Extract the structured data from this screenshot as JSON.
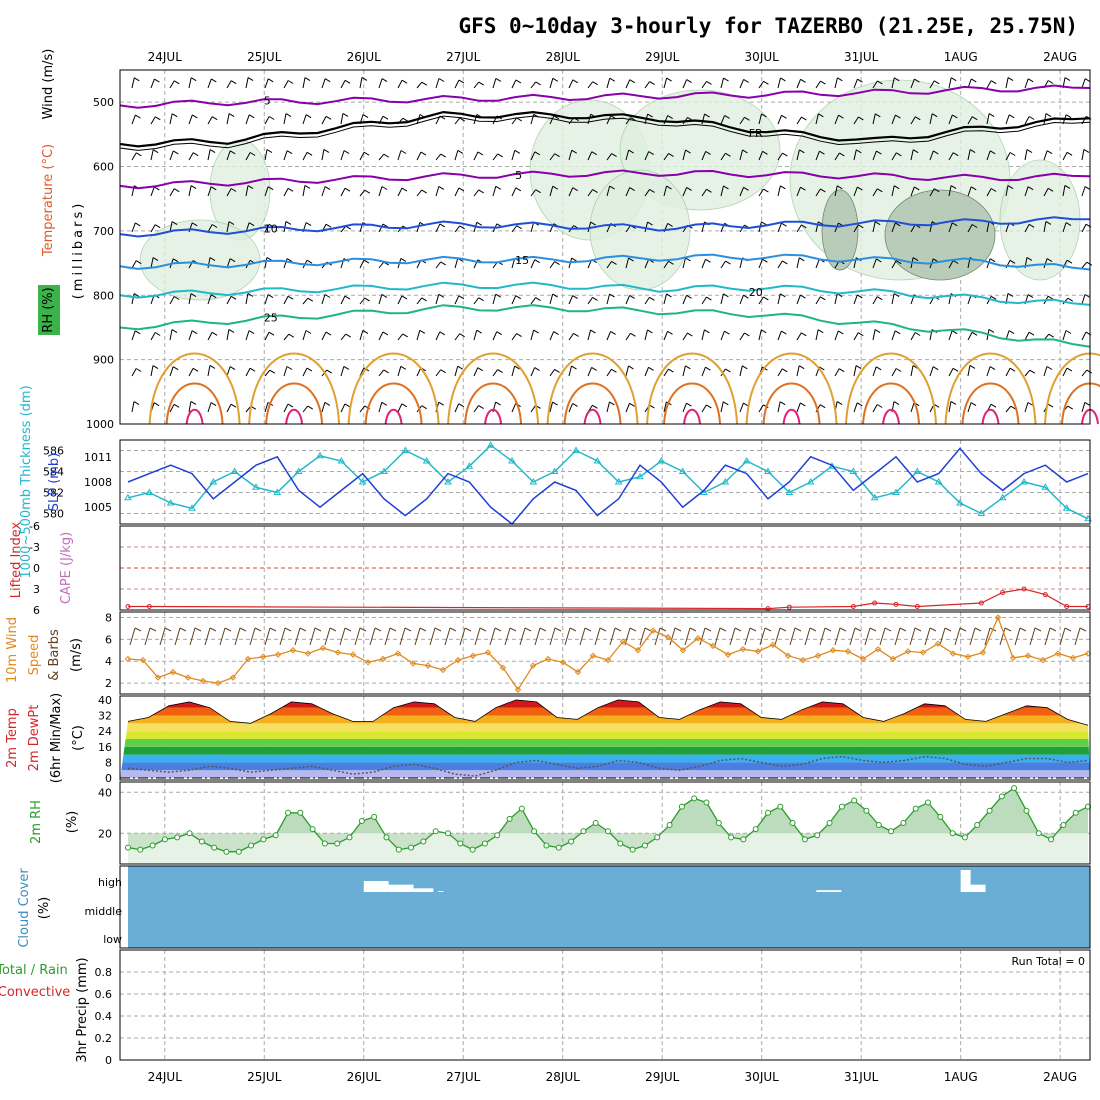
{
  "title": "GFS 0~10day 3-hourly for TAZERBO (21.25E, 25.75N)",
  "dates": [
    "24JUL",
    "25JUL",
    "26JUL",
    "27JUL",
    "28JUL",
    "29JUL",
    "30JUL",
    "31JUL",
    "1AUG",
    "2AUG"
  ],
  "colors": {
    "grid": "#aaaaaa",
    "panel_border": "#000000",
    "cloud_fill": "#6aaed6",
    "rh_fill": "#c6dfc6",
    "precip_line": "#d62728"
  },
  "chart_data": [
    {
      "type": "contour",
      "panel": "upper-air",
      "ylabel_parts": [
        "Wind (m/s)",
        "Temperature (°C)",
        "RH (%)",
        "(millibars)"
      ],
      "yticks": [
        500,
        600,
        700,
        800,
        900,
        1000
      ],
      "ylim": [
        450,
        1000
      ],
      "freezing_label": "FR",
      "isotherms": [
        {
          "value": 5,
          "label": "5",
          "color": "#8800aa",
          "levels": [
            505,
            500,
            498,
            495,
            493,
            490,
            488,
            485,
            480,
            478
          ]
        },
        {
          "value": 5,
          "label": "5",
          "color": "#8800aa",
          "levels": [
            630,
            625,
            620,
            615,
            612,
            610,
            612,
            615,
            618,
            615
          ]
        },
        {
          "value": 0,
          "label": "FR",
          "color": "#000000",
          "levels": [
            565,
            560,
            540,
            520,
            520,
            525,
            545,
            560,
            540,
            525
          ]
        },
        {
          "value": 10,
          "label": "10",
          "color": "#1f4fd6",
          "levels": [
            705,
            700,
            695,
            690,
            692,
            695,
            690,
            688,
            686,
            682
          ]
        },
        {
          "value": 15,
          "label": "15",
          "color": "#2a8fe0",
          "levels": [
            755,
            752,
            748,
            745,
            745,
            742,
            740,
            745,
            748,
            760
          ]
        },
        {
          "value": 20,
          "label": "20",
          "color": "#22b8c9",
          "levels": [
            800,
            795,
            790,
            785,
            785,
            790,
            788,
            795,
            805,
            815
          ]
        },
        {
          "value": 25,
          "label": "25",
          "color": "#1fb38a",
          "levels": [
            850,
            840,
            830,
            820,
            820,
            825,
            830,
            845,
            860,
            880
          ]
        }
      ]
    },
    {
      "type": "line",
      "panel": "thickness-slp",
      "ylabel_left": "1000~500mb Thickness (dm)",
      "ylabel_right": "SLP (mb)",
      "yticks_left": [
        580,
        582,
        584,
        586
      ],
      "yticks_right": [
        1005,
        1008,
        1011
      ],
      "ylim_left": [
        579,
        587
      ],
      "ylim_right": [
        1003,
        1013
      ],
      "series": [
        {
          "name": "Thickness",
          "axis": "left",
          "color": "#22b8c9",
          "marker": "triangle",
          "values": [
            581.5,
            582,
            581,
            580.5,
            583,
            584,
            582.5,
            582,
            584,
            585.5,
            585,
            583,
            584,
            586,
            585,
            583,
            584.5,
            586.5,
            585,
            583,
            584,
            586,
            585,
            583,
            583.5,
            585,
            584,
            582,
            583,
            585,
            584,
            582,
            583,
            584.5,
            584,
            581.5,
            582,
            584,
            583,
            581,
            580,
            581.5,
            583,
            582.5,
            580.5,
            579.5
          ]
        },
        {
          "name": "SLP",
          "axis": "right",
          "color": "#1f3fd6",
          "values": [
            1008,
            1009,
            1010,
            1009,
            1006,
            1008,
            1010,
            1011,
            1007,
            1005,
            1007,
            1009,
            1006,
            1004,
            1006,
            1009,
            1008,
            1005,
            1003,
            1006,
            1008,
            1007,
            1004,
            1006,
            1010,
            1008,
            1005,
            1007,
            1010,
            1009,
            1006,
            1008,
            1011,
            1010,
            1007,
            1009,
            1011,
            1008,
            1009,
            1012,
            1009,
            1007,
            1009,
            1010,
            1008,
            1009
          ]
        }
      ]
    },
    {
      "type": "line",
      "panel": "stability",
      "ylabel_parts": [
        "Lifted Index",
        "CAPE (J/kg)"
      ],
      "yticks": [
        -6,
        -3,
        0,
        3,
        6
      ],
      "ylim": [
        -6,
        6
      ],
      "series": [
        {
          "name": "Lifted Index",
          "color": "#d62728",
          "values": [
            5.5,
            5.5,
            6,
            6,
            6,
            6,
            6,
            6,
            6,
            6,
            6,
            6,
            6,
            6,
            6,
            6,
            6,
            6,
            6,
            6,
            6,
            6,
            6,
            6,
            6,
            6,
            6,
            6,
            6,
            6,
            5.8,
            5.6,
            6,
            6,
            5.5,
            5,
            5.2,
            5.5,
            6,
            6,
            5,
            3.5,
            3,
            3.8,
            5.5,
            5.5
          ]
        }
      ]
    },
    {
      "type": "line",
      "panel": "10m-wind",
      "ylabel_parts": [
        "10m Wind",
        "Speed",
        "& Barbs",
        "(m/s)"
      ],
      "yticks": [
        2,
        4,
        6,
        8
      ],
      "ylim": [
        1,
        8.5
      ],
      "series": [
        {
          "name": "10m Wind Speed",
          "color": "#e08a1e",
          "values": [
            4.2,
            4.1,
            2.5,
            3,
            2.5,
            2.2,
            2,
            2.5,
            4.2,
            4.4,
            4.6,
            5,
            4.7,
            5.2,
            4.8,
            4.6,
            3.9,
            4.2,
            4.7,
            3.8,
            3.6,
            3.2,
            4.1,
            4.5,
            4.8,
            3.4,
            1.4,
            3.6,
            4.2,
            3.9,
            3,
            4.5,
            4.1,
            5.8,
            5,
            6.8,
            6.2,
            5,
            6.1,
            5.4,
            4.6,
            5.1,
            4.9,
            5.5,
            4.5,
            4.1,
            4.5,
            5,
            4.9,
            4.2,
            5.1,
            4.2,
            4.9,
            4.8,
            5.6,
            4.7,
            4.4,
            4.8,
            8,
            4.3,
            4.5,
            4.1,
            4.7,
            4.3,
            4.7
          ]
        }
      ]
    },
    {
      "type": "area",
      "panel": "2m-temp",
      "ylabel_parts": [
        "2m Temp",
        "2m DewPt",
        "(6hr Min/Max)",
        "(°C)"
      ],
      "yticks": [
        0,
        8,
        16,
        24,
        32,
        40
      ],
      "ylim": [
        -1,
        42
      ],
      "series": [
        {
          "name": "2m Temp",
          "values": [
            29,
            31,
            37,
            39,
            36,
            29,
            28,
            33,
            39,
            38,
            33,
            29,
            29,
            36,
            39,
            38,
            31,
            29,
            36,
            40,
            39,
            31,
            30,
            36,
            40,
            39,
            31,
            30,
            35,
            39,
            38,
            31,
            30,
            35,
            39,
            38,
            31,
            29,
            33,
            38,
            37,
            30,
            29,
            33,
            37,
            36,
            30,
            27
          ]
        },
        {
          "name": "2m DewPt",
          "values": [
            5,
            4,
            3,
            4,
            6,
            5,
            3,
            4,
            5,
            6,
            4,
            2,
            3,
            6,
            7,
            5,
            2,
            1,
            4,
            8,
            9,
            7,
            5,
            6,
            9,
            8,
            5,
            4,
            6,
            9,
            10,
            8,
            6,
            7,
            10,
            11,
            9,
            8,
            9,
            11,
            10,
            7,
            6,
            8,
            10,
            10,
            8,
            9
          ]
        }
      ]
    },
    {
      "type": "area",
      "panel": "2m-rh",
      "ylabel_parts": [
        "2m RH",
        "(%)"
      ],
      "yticks": [
        20,
        40
      ],
      "ylim": [
        5,
        45
      ],
      "series": [
        {
          "name": "2m RH",
          "color": "#2a9d2a",
          "values": [
            13,
            12,
            14,
            17,
            18,
            20,
            16,
            13,
            11,
            11,
            14,
            17,
            19,
            30,
            30,
            22,
            15,
            15,
            18,
            26,
            28,
            18,
            12,
            13,
            16,
            21,
            20,
            15,
            12,
            15,
            19,
            27,
            32,
            21,
            14,
            13,
            16,
            21,
            25,
            21,
            15,
            12,
            14,
            18,
            24,
            33,
            37,
            35,
            25,
            18,
            17,
            22,
            30,
            33,
            25,
            17,
            19,
            25,
            33,
            36,
            31,
            24,
            21,
            25,
            32,
            35,
            28,
            20,
            18,
            24,
            31,
            38,
            42,
            31,
            20,
            17,
            24,
            30,
            33
          ]
        }
      ]
    },
    {
      "type": "bar",
      "panel": "cloud-cover",
      "ylabel_parts": [
        "Cloud Cover",
        "(%)"
      ],
      "yticks": [
        "high",
        "middle",
        "low"
      ],
      "series": [
        {
          "name": "high cloud gaps",
          "color": "#ffffff",
          "bars": [
            [
              26.0,
              26.25,
              12
            ],
            [
              26.25,
              26.5,
              8
            ],
            [
              26.5,
              26.7,
              4
            ],
            [
              26.75,
              26.8,
              1
            ],
            [
              30.55,
              30.8,
              2
            ],
            [
              32.0,
              32.1,
              24
            ],
            [
              32.1,
              32.25,
              8
            ]
          ]
        }
      ]
    },
    {
      "type": "line",
      "panel": "precip",
      "ylabel_parts": [
        "Total / Rain",
        "Convective",
        "3hr Precip (mm)"
      ],
      "yticks": [
        0,
        0.2,
        0.4,
        0.6,
        0.8
      ],
      "ylim": [
        0,
        1.0
      ],
      "run_total": "Run Total = 0",
      "series": [
        {
          "name": "Total",
          "color": "#2a9d2a",
          "values": []
        },
        {
          "name": "Convective",
          "color": "#d62728",
          "values": []
        }
      ]
    }
  ]
}
